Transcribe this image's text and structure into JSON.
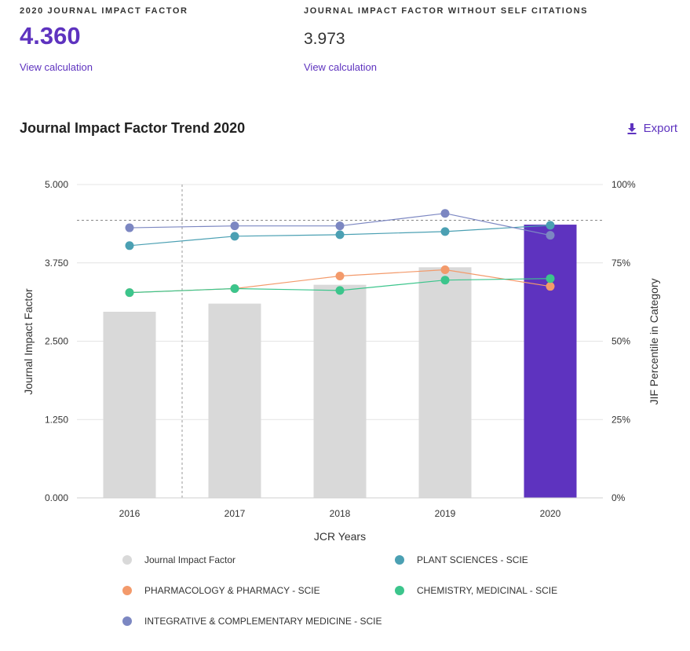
{
  "metrics": {
    "jif": {
      "label": "2020 JOURNAL IMPACT FACTOR",
      "value": "4.360",
      "link": "View calculation"
    },
    "jif_no_self": {
      "label": "JOURNAL IMPACT FACTOR WITHOUT SELF CITATIONS",
      "value": "3.973",
      "link": "View calculation"
    }
  },
  "chart_section": {
    "title": "Journal Impact Factor Trend 2020",
    "export_label": "Export"
  },
  "colors": {
    "bar": "#d9d9d9",
    "bar_highlight": "#5e33bf",
    "plant": "#4ba0b3",
    "pharma": "#f39a6b",
    "chem": "#3cc58c",
    "integrative": "#7c87c2"
  },
  "chart_data": {
    "type": "bar",
    "title": "Journal Impact Factor Trend 2020",
    "xlabel": "JCR Years",
    "ylabel": "Journal Impact Factor",
    "y2label": "JIF Percentile in Category",
    "categories": [
      "2016",
      "2017",
      "2018",
      "2019",
      "2020"
    ],
    "ylim": [
      0,
      5
    ],
    "y_ticks": [
      "0.000",
      "1.250",
      "2.500",
      "3.750",
      "5.000"
    ],
    "y2lim": [
      0,
      100
    ],
    "y2_ticks": [
      "0%",
      "25%",
      "50%",
      "75%",
      "100%"
    ],
    "bar_series": {
      "name": "Journal Impact Factor",
      "values": [
        2.97,
        3.1,
        3.4,
        3.68,
        4.36
      ],
      "highlight_index": 4
    },
    "percentile_series": [
      {
        "name": "PLANT SCIENCES - SCIE",
        "color_key": "plant",
        "values": [
          80.5,
          83.5,
          84.0,
          85.0,
          87.0
        ]
      },
      {
        "name": "PHARMACOLOGY & PHARMACY - SCIE",
        "color_key": "pharma",
        "values": [
          65.5,
          66.8,
          70.8,
          72.8,
          67.5
        ]
      },
      {
        "name": "CHEMISTRY, MEDICINAL - SCIE",
        "color_key": "chem",
        "values": [
          65.5,
          66.8,
          66.2,
          69.5,
          70.0
        ]
      },
      {
        "name": "INTEGRATIVE & COMPLEMENTARY MEDICINE - SCIE",
        "color_key": "integrative",
        "values": [
          86.2,
          86.8,
          86.8,
          90.8,
          83.8
        ]
      }
    ],
    "reference_line_value": 4.43,
    "legend": [
      {
        "label": "Journal Impact Factor",
        "color_key": "bar"
      },
      {
        "label": "PLANT SCIENCES - SCIE",
        "color_key": "plant"
      },
      {
        "label": "PHARMACOLOGY & PHARMACY - SCIE",
        "color_key": "pharma"
      },
      {
        "label": "CHEMISTRY, MEDICINAL - SCIE",
        "color_key": "chem"
      },
      {
        "label": "INTEGRATIVE & COMPLEMENTARY MEDICINE - SCIE",
        "color_key": "integrative"
      }
    ]
  }
}
